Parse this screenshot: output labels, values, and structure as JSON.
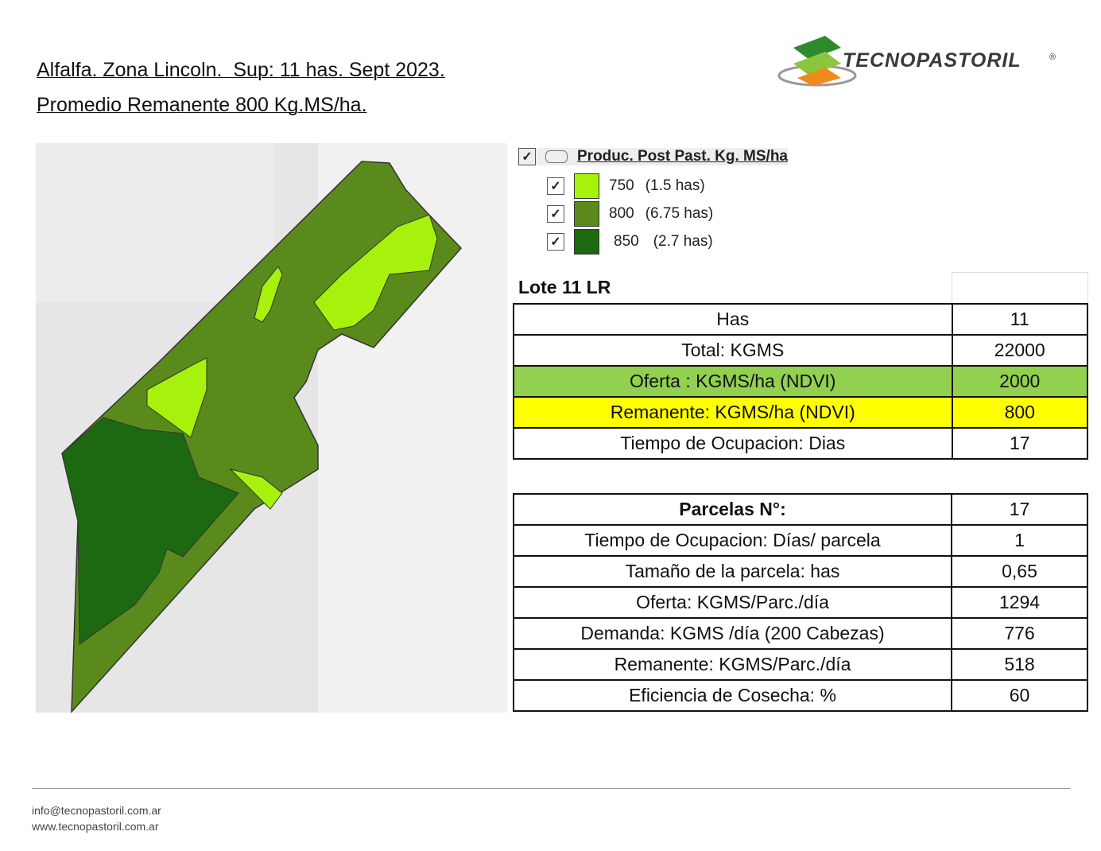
{
  "header": {
    "title_lines": [
      "Alfalfa. Zona Lincoln.  Sup: 11 has. Sept 2023.",
      "Promedio Remanente 800 Kg.MS/ha."
    ]
  },
  "logo": {
    "text": "TECNOPASTORIL",
    "mark": "®"
  },
  "legend": {
    "title": "Produc. Post Past. Kg. MS/ha",
    "items": [
      {
        "value": "750",
        "area": "(1.5 has)",
        "color": "#a6f20c"
      },
      {
        "value": "800",
        "area": "(6.75 has)",
        "color": "#5b8a1c"
      },
      {
        "value": "850",
        "area": "(2.7 has)",
        "color": "#1d6912"
      }
    ]
  },
  "table": {
    "title": "Lote 11 LR",
    "rows": [
      [
        "Has",
        "11"
      ],
      [
        "Total:  KGMS",
        "22000"
      ],
      [
        "Oferta : KGMS/ha  (NDVI)",
        "2000"
      ],
      [
        "Remanente:  KGMS/ha (NDVI)",
        "800"
      ],
      [
        "Tiempo de Ocupacion:  Dias",
        "17"
      ]
    ]
  },
  "table2": {
    "rows": [
      [
        "Parcelas N°:",
        "17"
      ],
      [
        "Tiempo de Ocupacion: Días/ parcela",
        "1"
      ],
      [
        "Tamaño de la parcela:  has",
        "0,65"
      ],
      [
        "Oferta:  KGMS/Parc./día",
        "1294"
      ],
      [
        "Demanda:   KGMS /día  (200 Cabezas)",
        "776"
      ],
      [
        "Remanente:  KGMS/Parc./día",
        "518"
      ],
      [
        "Eficiencia de Cosecha:  %",
        "60"
      ]
    ]
  },
  "footer": {
    "email": "info@tecnopastoril.com.ar",
    "web": "www.tecnopastoril.com.ar"
  }
}
